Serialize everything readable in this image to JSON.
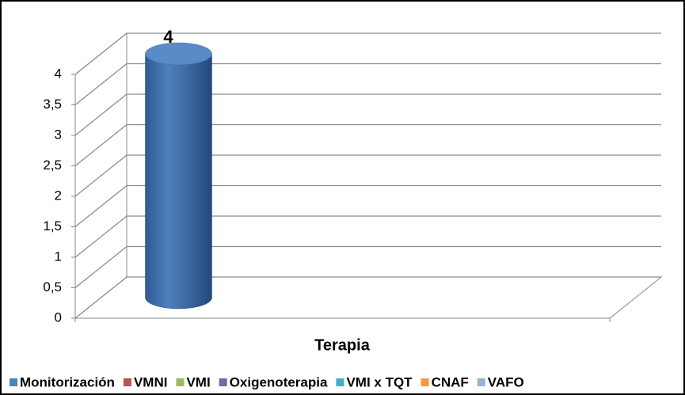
{
  "chart_data": {
    "type": "bar3d",
    "x_label": "Terapia",
    "categories": [
      "Terapia"
    ],
    "series": [
      {
        "name": "Monitorización",
        "color": "#4f81bd",
        "values": [
          4
        ]
      },
      {
        "name": "VMNI",
        "color": "#c0504d",
        "values": [
          null
        ]
      },
      {
        "name": "VMI",
        "color": "#9bbb59",
        "values": [
          null
        ]
      },
      {
        "name": "Oxigenoterapia",
        "color": "#8064a2",
        "values": [
          null
        ]
      },
      {
        "name": "VMI x TQT",
        "color": "#4bacc6",
        "values": [
          null
        ]
      },
      {
        "name": "CNAF",
        "color": "#f79646",
        "values": [
          null
        ]
      },
      {
        "name": "VAFO",
        "color": "#95b3d7",
        "values": [
          null
        ]
      }
    ],
    "ylim": [
      0,
      4
    ],
    "yticks": [
      0,
      {
        "value": 0.5,
        "label": "0,5"
      },
      1,
      {
        "value": 1.5,
        "label": "1,5"
      },
      2,
      {
        "value": 2.5,
        "label": "2,5"
      },
      3,
      {
        "value": 3.5,
        "label": "3,5"
      },
      4
    ],
    "grid": true,
    "legend": "bottom"
  }
}
